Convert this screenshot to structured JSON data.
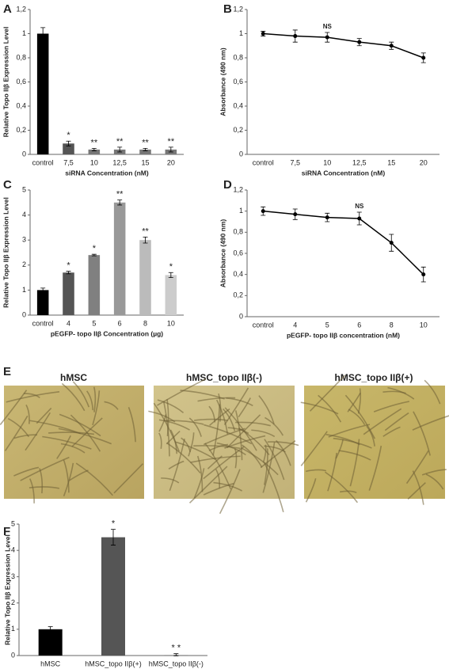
{
  "chart_data": [
    {
      "type": "bar",
      "panel": "A",
      "y_label": "Relative Topo IIβ Expression Level",
      "x_label": "siRNA Concentration (nM)",
      "categories": [
        "control",
        "7,5",
        "10",
        "12,5",
        "15",
        "20"
      ],
      "values": [
        1,
        0.09,
        0.04,
        0.04,
        0.04,
        0.04
      ],
      "errors": [
        0.05,
        0.02,
        0.01,
        0.02,
        0.01,
        0.02
      ],
      "colors": [
        "#000000",
        "#555555",
        "#777777",
        "#777777",
        "#777777",
        "#777777"
      ],
      "annotations": [
        null,
        "*",
        "**",
        "**",
        "**",
        "**"
      ],
      "ylim": [
        0,
        1.2
      ],
      "yticks": [
        0,
        {
          "value": 0.2,
          "label": "0,2"
        },
        {
          "value": 0.4,
          "label": "0,4"
        },
        {
          "value": 0.6,
          "label": "0,6"
        },
        {
          "value": 0.8,
          "label": "0,8"
        },
        1,
        {
          "value": 1.2,
          "label": "1,2"
        }
      ]
    },
    {
      "type": "line",
      "panel": "B",
      "y_label": "Absorbance (490 nm)",
      "x_label": "siRNA Concentration (nM)",
      "categories": [
        "control",
        "7,5",
        "10",
        "12,5",
        "15",
        "20"
      ],
      "values": [
        1,
        0.98,
        0.97,
        0.93,
        0.9,
        0.8
      ],
      "errors": [
        0.02,
        0.05,
        0.04,
        0.03,
        0.03,
        0.04
      ],
      "color": "#000000",
      "annotations": [
        null,
        null,
        "NS",
        null,
        null,
        null
      ],
      "ylim": [
        0,
        1.2
      ],
      "yticks": [
        0,
        {
          "value": 0.2,
          "label": "0,2"
        },
        {
          "value": 0.4,
          "label": "0,4"
        },
        {
          "value": 0.6,
          "label": "0,6"
        },
        {
          "value": 0.8,
          "label": "0,8"
        },
        1,
        {
          "value": 1.2,
          "label": "1,2"
        }
      ]
    },
    {
      "type": "bar",
      "panel": "C",
      "y_label": "Relative Topo IIβ Expression Level",
      "x_label": "pEGFP- topo IIβ Concentration (µg)",
      "categories": [
        "control",
        "4",
        "5",
        "6",
        "8",
        "10"
      ],
      "values": [
        1,
        1.7,
        2.4,
        4.5,
        3.0,
        1.6
      ],
      "errors": [
        0.08,
        0.05,
        0.03,
        0.1,
        0.12,
        0.1
      ],
      "colors": [
        "#000000",
        "#555555",
        "#808080",
        "#999999",
        "#bbbbbb",
        "#cccccc"
      ],
      "annotations": [
        null,
        "*",
        "*",
        "**",
        "**",
        "*"
      ],
      "ylim": [
        0,
        5
      ],
      "yticks": [
        0,
        1,
        2,
        3,
        4,
        5
      ]
    },
    {
      "type": "line",
      "panel": "D",
      "y_label": "Absorbance (490 nm)",
      "x_label": "pEGFP- topo IIβ concentration (nM)",
      "categories": [
        "control",
        "4",
        "5",
        "6",
        "8",
        "10"
      ],
      "values": [
        1,
        0.97,
        0.94,
        0.93,
        0.7,
        0.4
      ],
      "errors": [
        0.04,
        0.05,
        0.04,
        0.06,
        0.08,
        0.07
      ],
      "color": "#000000",
      "annotations": [
        null,
        null,
        null,
        "NS",
        null,
        null
      ],
      "ylim": [
        0,
        1.2
      ],
      "yticks": [
        0,
        {
          "value": 0.2,
          "label": "0,2"
        },
        {
          "value": 0.4,
          "label": "0,4"
        },
        {
          "value": 0.6,
          "label": "0,6"
        },
        {
          "value": 0.8,
          "label": "0,8"
        },
        1,
        {
          "value": 1.2,
          "label": "1,2"
        }
      ]
    },
    {
      "type": "bar",
      "panel": "F",
      "y_label": "Relative Topo IIβ Expression Level",
      "categories": [
        "hMSC",
        "hMSC_topo IIβ(+)",
        "hMSC_topo IIβ(-)"
      ],
      "values": [
        1,
        4.5,
        0.03
      ],
      "errors": [
        0.1,
        0.3,
        0.04
      ],
      "colors": [
        "#000000",
        "#555555",
        "#aaaaaa"
      ],
      "annotations": [
        null,
        "*",
        "* *"
      ],
      "ylim": [
        0,
        5
      ],
      "yticks": [
        0,
        1,
        2,
        3,
        4,
        5
      ]
    }
  ],
  "panel_E": {
    "panel": "E",
    "titles": [
      "hMSC",
      "hMSC_topo IIβ(-)",
      "hMSC_topo IIβ(+)"
    ]
  }
}
